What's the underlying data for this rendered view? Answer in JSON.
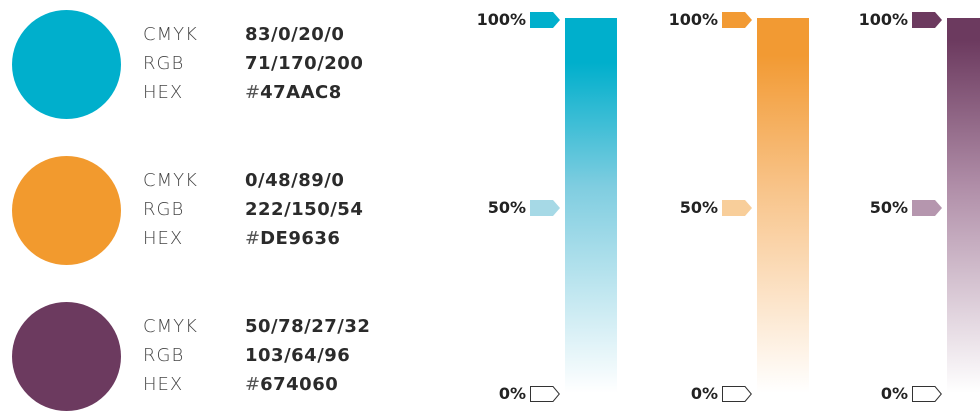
{
  "swatches": [
    {
      "color": "#47AAC8",
      "rows": [
        {
          "label": "CMYK",
          "value": "83/0/20/0"
        },
        {
          "label": "RGB",
          "value": "71/170/200"
        },
        {
          "label": "HEX",
          "prefix": "#",
          "value": "47AAC8"
        }
      ]
    },
    {
      "color": "#DE9636",
      "rows": [
        {
          "label": "CMYK",
          "value": "0/48/89/0"
        },
        {
          "label": "RGB",
          "value": "222/150/54"
        },
        {
          "label": "HEX",
          "prefix": "#",
          "value": "DE9636"
        }
      ]
    },
    {
      "color": "#674060",
      "rows": [
        {
          "label": "CMYK",
          "value": "50/78/27/32"
        },
        {
          "label": "RGB",
          "value": "103/64/96"
        },
        {
          "label": "HEX",
          "prefix": "#",
          "value": "674060"
        }
      ]
    }
  ],
  "scales": [
    {
      "color": "#00AFCC",
      "tint_50": "#A6D9E6",
      "markers": [
        "100%",
        "50%",
        "0%"
      ]
    },
    {
      "color": "#F29A33",
      "tint_50": "#F8CE9A",
      "markers": [
        "100%",
        "50%",
        "0%"
      ]
    },
    {
      "color": "#6C3A5F",
      "tint_50": "#B596AE",
      "markers": [
        "100%",
        "50%",
        "0%"
      ]
    }
  ]
}
